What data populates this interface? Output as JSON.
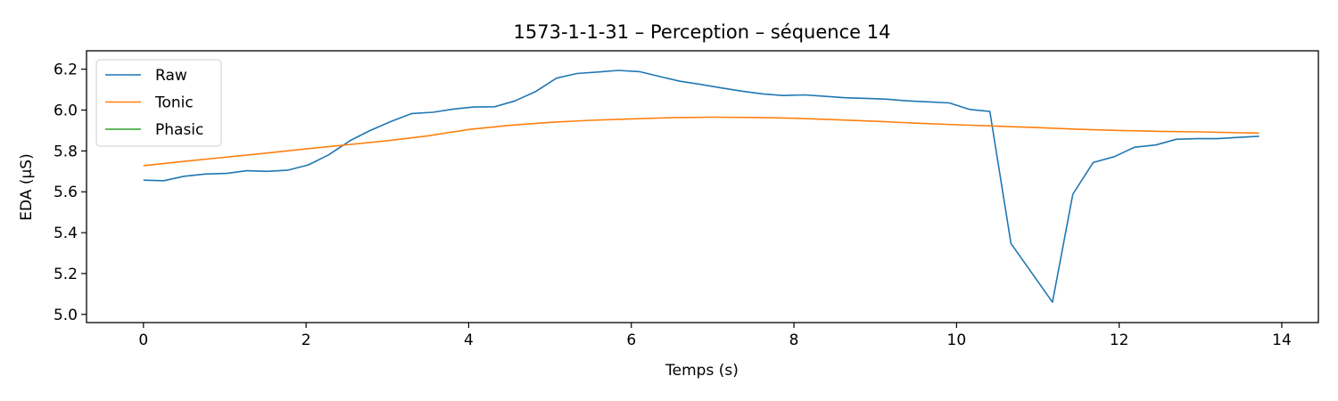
{
  "chart_data": {
    "type": "line",
    "title": "1573-1-1-31 – Perception – séquence 14",
    "xlabel": "Temps (s)",
    "ylabel": "EDA (µS)",
    "xlim": [
      -0.7,
      14.45
    ],
    "ylim": [
      4.96,
      6.29
    ],
    "xticks": [
      0,
      2,
      4,
      6,
      8,
      10,
      12,
      14
    ],
    "xtick_labels": [
      "0",
      "2",
      "4",
      "6",
      "8",
      "10",
      "12",
      "14"
    ],
    "yticks": [
      5.0,
      5.2,
      5.4,
      5.6,
      5.8,
      6.0,
      6.2
    ],
    "ytick_labels": [
      "5.0",
      "5.2",
      "5.4",
      "5.6",
      "5.8",
      "6.0",
      "6.2"
    ],
    "grid": false,
    "legend_position": "top-left",
    "series": [
      {
        "name": "Raw",
        "color": "#1f77b4",
        "x": [
          0,
          0.25,
          0.5,
          0.76,
          1.02,
          1.27,
          1.52,
          1.78,
          2.03,
          2.28,
          2.54,
          2.79,
          3.05,
          3.3,
          3.56,
          3.81,
          4.06,
          4.32,
          4.57,
          4.82,
          5.08,
          5.33,
          5.59,
          5.84,
          6.1,
          6.35,
          6.6,
          6.86,
          7.11,
          7.37,
          7.62,
          7.87,
          8.13,
          8.38,
          8.63,
          8.89,
          9.14,
          9.4,
          9.65,
          9.91,
          10.16,
          10.41,
          10.67,
          11.18,
          11.43,
          11.68,
          11.94,
          12.19,
          12.45,
          12.7,
          12.95,
          13.21,
          13.46,
          13.72
        ],
        "values": [
          5.657,
          5.654,
          5.676,
          5.687,
          5.69,
          5.703,
          5.7,
          5.706,
          5.732,
          5.781,
          5.85,
          5.9,
          5.945,
          5.983,
          5.989,
          6.005,
          6.015,
          6.016,
          6.045,
          6.09,
          6.156,
          6.179,
          6.186,
          6.194,
          6.188,
          6.164,
          6.141,
          6.125,
          6.108,
          6.092,
          6.079,
          6.071,
          6.074,
          6.067,
          6.06,
          6.057,
          6.053,
          6.045,
          6.04,
          6.035,
          6.003,
          5.993,
          5.347,
          5.06,
          5.588,
          5.743,
          5.772,
          5.818,
          5.829,
          5.857,
          5.86,
          5.86,
          5.866,
          5.872
        ]
      },
      {
        "name": "Tonic",
        "color": "#ff7f0e",
        "x": [
          0,
          0.5,
          1,
          1.5,
          2,
          2.5,
          3,
          3.5,
          4,
          4.5,
          5,
          5.5,
          6,
          6.5,
          7,
          7.5,
          8,
          8.5,
          9,
          9.5,
          10,
          10.5,
          11,
          11.5,
          12,
          12.5,
          13,
          13.5,
          13.72
        ],
        "values": [
          5.728,
          5.749,
          5.769,
          5.789,
          5.81,
          5.83,
          5.85,
          5.874,
          5.905,
          5.925,
          5.94,
          5.95,
          5.957,
          5.963,
          5.965,
          5.964,
          5.96,
          5.953,
          5.945,
          5.936,
          5.928,
          5.921,
          5.914,
          5.906,
          5.9,
          5.896,
          5.893,
          5.889,
          5.887
        ]
      },
      {
        "name": "Phasic",
        "color": "#2ca02c",
        "x": [],
        "values": []
      }
    ]
  }
}
